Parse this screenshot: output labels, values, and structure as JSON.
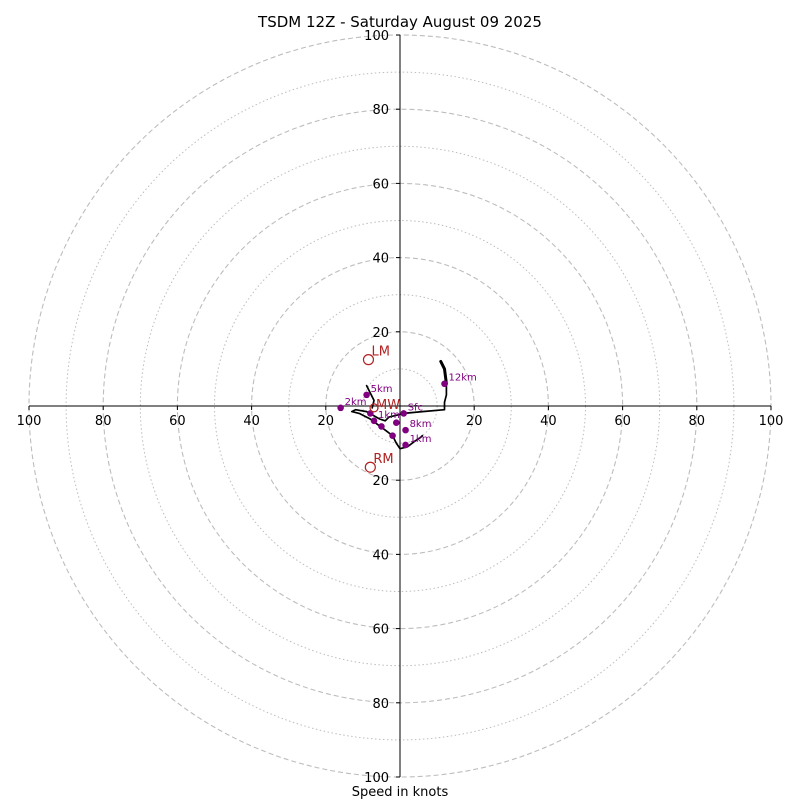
{
  "chart_data": {
    "type": "hodograph",
    "title": "TSDM 12Z - Saturday August 09 2025",
    "xlabel": "Speed in knots",
    "ylabel": "",
    "xlim": [
      -100,
      100
    ],
    "ylim": [
      -100,
      100
    ],
    "rings_major": [
      20,
      40,
      60,
      80,
      100
    ],
    "rings_minor": [
      10,
      30,
      50,
      70,
      90
    ],
    "x_tick_labels": [
      {
        "value": -100,
        "label": "100"
      },
      {
        "value": -80,
        "label": "80"
      },
      {
        "value": -60,
        "label": "60"
      },
      {
        "value": -40,
        "label": "40"
      },
      {
        "value": -20,
        "label": "20"
      },
      {
        "value": 20,
        "label": "20"
      },
      {
        "value": 40,
        "label": "40"
      },
      {
        "value": 60,
        "label": "60"
      },
      {
        "value": 80,
        "label": "80"
      },
      {
        "value": 100,
        "label": "100"
      }
    ],
    "y_tick_labels": [
      {
        "value": 100,
        "label": "100"
      },
      {
        "value": 80,
        "label": "80"
      },
      {
        "value": 60,
        "label": "60"
      },
      {
        "value": 40,
        "label": "40"
      },
      {
        "value": 20,
        "label": "20"
      },
      {
        "value": -20,
        "label": "20"
      },
      {
        "value": -40,
        "label": "40"
      },
      {
        "value": -60,
        "label": "60"
      },
      {
        "value": -80,
        "label": "80"
      },
      {
        "value": -100,
        "label": "100"
      }
    ],
    "trace": [
      [
        11,
        12
      ],
      [
        12,
        10
      ],
      [
        12.5,
        6
      ],
      [
        12.5,
        3
      ],
      [
        12,
        1
      ],
      [
        12,
        -1
      ],
      [
        6,
        -1.5
      ],
      [
        1,
        -2
      ],
      [
        -1,
        -2.5
      ],
      [
        -3,
        -3
      ],
      [
        -4,
        -4
      ],
      [
        -5.5,
        -3.5
      ],
      [
        -9,
        -1.5
      ],
      [
        -12,
        -1
      ],
      [
        -13,
        -1.5
      ],
      [
        -11,
        -2
      ],
      [
        -8,
        -3.5
      ],
      [
        -6,
        -5
      ],
      [
        -4,
        -6.5
      ],
      [
        -2,
        -8
      ],
      [
        -1,
        -10
      ],
      [
        0,
        -11.5
      ],
      [
        2,
        -11
      ],
      [
        4,
        -9.5
      ],
      [
        5.5,
        -8.5
      ],
      [
        6,
        -8
      ]
    ],
    "trace_upper_branch": [
      [
        -9,
        5.5
      ],
      [
        -8,
        3.5
      ],
      [
        -7,
        1.5
      ],
      [
        -7.5,
        -0.5
      ]
    ],
    "height_markers": [
      {
        "label": "12km",
        "x": 12,
        "y": 6
      },
      {
        "label": "5km",
        "x": -9,
        "y": 3
      },
      {
        "label": "2km",
        "x": -16,
        "y": -0.5
      },
      {
        "label": "Sfc",
        "x": 1,
        "y": -2
      },
      {
        "label": "8km",
        "x": 1.5,
        "y": -6.5
      },
      {
        "label": "1km",
        "x": 1.5,
        "y": -10.5
      },
      {
        "label": "1km",
        "x": -7,
        "y": -4
      },
      {
        "label": "",
        "x": -8,
        "y": -2
      },
      {
        "label": "",
        "x": -5,
        "y": -5.5
      },
      {
        "label": "",
        "x": -2,
        "y": -8
      },
      {
        "label": "",
        "x": -1,
        "y": -4.5
      }
    ],
    "motion_markers": [
      {
        "label": "LM",
        "x": -8.5,
        "y": 12.5
      },
      {
        "label": "RM",
        "x": -8,
        "y": -16.5
      }
    ],
    "mean_wind": {
      "label": "MW",
      "x": -7,
      "y": -0.5
    },
    "colors": {
      "ring": "#bdbdbd",
      "axis": "#000000",
      "trace": "#000000",
      "height_marker": "#800080",
      "storm_motion": "#b22222"
    }
  }
}
